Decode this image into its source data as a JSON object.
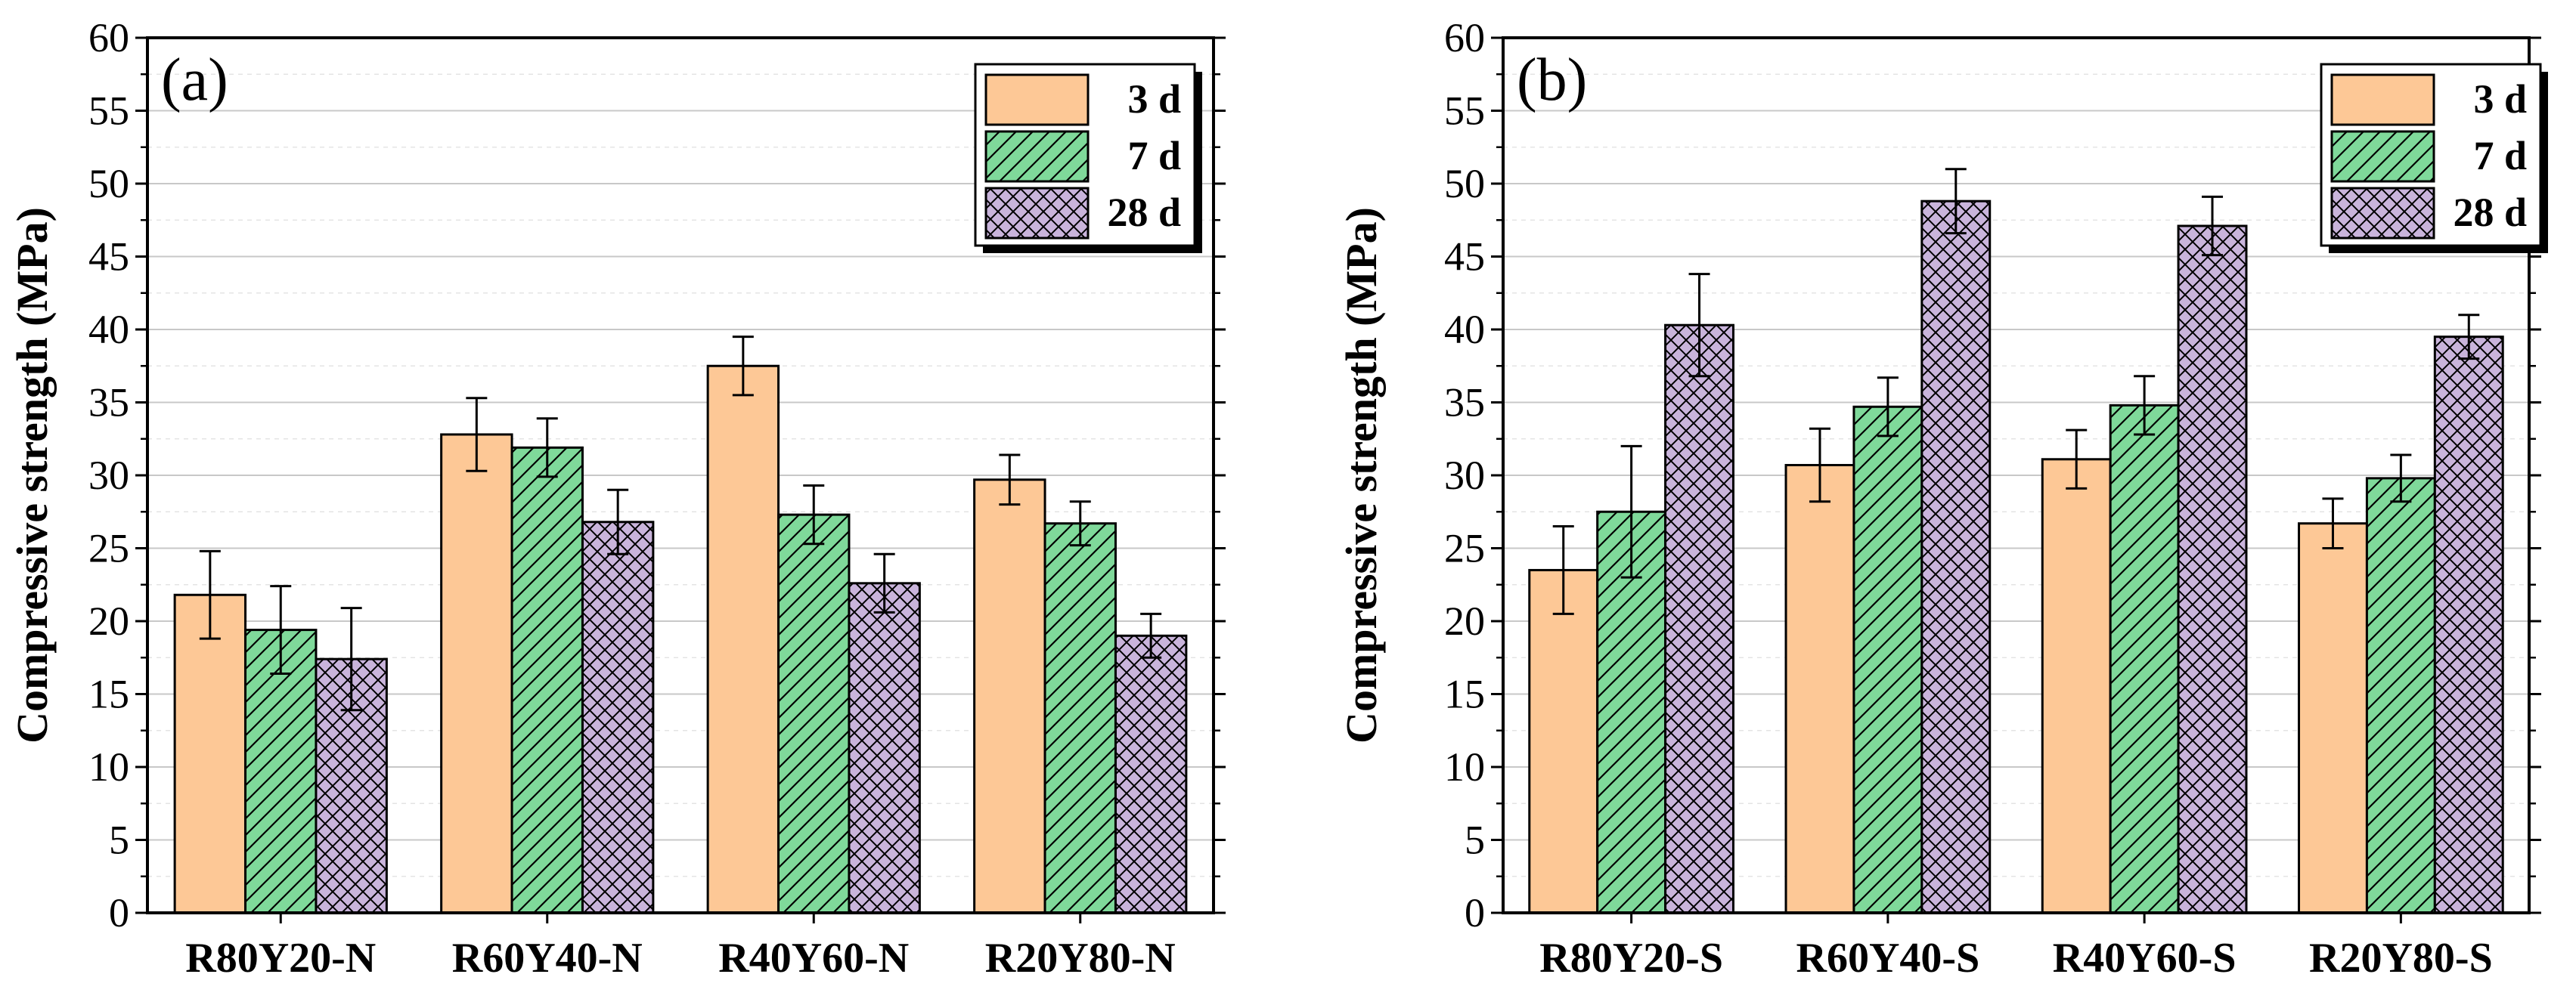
{
  "figure": {
    "background": "#ffffff"
  },
  "colors": {
    "3 d": "#FDC896",
    "7 d": "#7FD99A",
    "28 d": "#C9B4DB",
    "hatch": "#000000",
    "grid": "#cccccc"
  },
  "chart_data": [
    {
      "type": "bar",
      "panel_label": "(a)",
      "categories": [
        "R80Y20-N",
        "R60Y40-N",
        "R40Y60-N",
        "R20Y80-N"
      ],
      "series": [
        {
          "name": "3 d",
          "pattern": "none",
          "values": [
            21.8,
            32.8,
            37.5,
            29.7
          ],
          "errors": [
            3.0,
            2.5,
            2.0,
            1.7
          ]
        },
        {
          "name": "7 d",
          "pattern": "diagonal",
          "values": [
            19.4,
            31.9,
            27.3,
            26.7
          ],
          "errors": [
            3.0,
            2.0,
            2.0,
            1.5
          ]
        },
        {
          "name": "28 d",
          "pattern": "crosshatch",
          "values": [
            17.4,
            26.8,
            22.6,
            19.0
          ],
          "errors": [
            3.5,
            2.2,
            2.0,
            1.5
          ]
        }
      ],
      "xlabel": "",
      "ylabel": "Compressive strength (MPa)",
      "ylim": [
        0,
        60
      ],
      "yticks": [
        0,
        5,
        10,
        15,
        20,
        25,
        30,
        35,
        40,
        45,
        50,
        55,
        60
      ],
      "grid": true,
      "legend_position": "top-right"
    },
    {
      "type": "bar",
      "panel_label": "(b)",
      "categories": [
        "R80Y20-S",
        "R60Y40-S",
        "R40Y60-S",
        "R20Y80-S"
      ],
      "series": [
        {
          "name": "3 d",
          "pattern": "none",
          "values": [
            23.5,
            30.7,
            31.1,
            26.7
          ],
          "errors": [
            3.0,
            2.5,
            2.0,
            1.7
          ]
        },
        {
          "name": "7 d",
          "pattern": "diagonal",
          "values": [
            27.5,
            34.7,
            34.8,
            29.8
          ],
          "errors": [
            4.5,
            2.0,
            2.0,
            1.6
          ]
        },
        {
          "name": "28 d",
          "pattern": "crosshatch",
          "values": [
            40.3,
            48.8,
            47.1,
            39.5
          ],
          "errors": [
            3.5,
            2.2,
            2.0,
            1.5
          ]
        }
      ],
      "xlabel": "",
      "ylabel": "Compressive strength (MPa)",
      "ylim": [
        0,
        60
      ],
      "yticks": [
        0,
        5,
        10,
        15,
        20,
        25,
        30,
        35,
        40,
        45,
        50,
        55,
        60
      ],
      "grid": true,
      "legend_position": "top-right"
    }
  ]
}
